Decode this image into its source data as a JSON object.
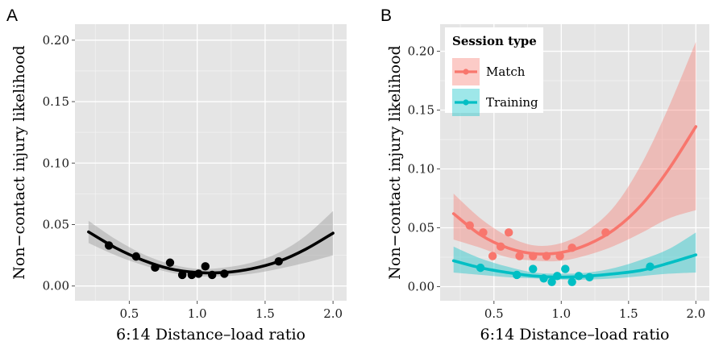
{
  "chart_data": [
    {
      "panel": "A",
      "type": "scatter",
      "xlabel": "6:14 Distance–load ratio",
      "ylabel": "Non−contact injury likelihood",
      "xlim": [
        0.1,
        2.1
      ],
      "ylim": [
        -0.012,
        0.213
      ],
      "xticks": [
        0.5,
        1.0,
        1.5,
        2.0
      ],
      "xtick_labels": [
        "0.5",
        "1.0",
        "1.5",
        "2.0"
      ],
      "yticks": [
        0.0,
        0.05,
        0.1,
        0.15,
        0.2
      ],
      "ytick_labels": [
        "0.00",
        "0.05",
        "0.10",
        "0.15",
        "0.20"
      ],
      "grid": true,
      "series": [
        {
          "color": "#000000",
          "band_color": "#aaaaaa",
          "points": [
            {
              "x": 0.35,
              "y": 0.033
            },
            {
              "x": 0.55,
              "y": 0.024
            },
            {
              "x": 0.69,
              "y": 0.015
            },
            {
              "x": 0.8,
              "y": 0.019
            },
            {
              "x": 0.89,
              "y": 0.009
            },
            {
              "x": 0.96,
              "y": 0.009
            },
            {
              "x": 1.01,
              "y": 0.01
            },
            {
              "x": 1.06,
              "y": 0.016
            },
            {
              "x": 1.11,
              "y": 0.009
            },
            {
              "x": 1.2,
              "y": 0.01
            },
            {
              "x": 1.6,
              "y": 0.02
            }
          ],
          "fit": {
            "x": [
              0.2,
              0.4,
              0.6,
              0.8,
              1.0,
              1.2,
              1.4,
              1.6,
              1.8,
              2.0
            ],
            "y": [
              0.044,
              0.031,
              0.021,
              0.014,
              0.011,
              0.011,
              0.014,
              0.02,
              0.03,
              0.043
            ],
            "lower": [
              0.035,
              0.025,
              0.017,
              0.011,
              0.008,
              0.008,
              0.01,
              0.014,
              0.019,
              0.025
            ],
            "upper": [
              0.053,
              0.038,
              0.026,
              0.018,
              0.014,
              0.015,
              0.019,
              0.027,
              0.041,
              0.061
            ]
          }
        }
      ]
    },
    {
      "panel": "B",
      "type": "scatter",
      "xlabel": "6:14 Distance–load ratio",
      "ylabel": "Non−contact injury likelihood",
      "xlim": [
        0.1,
        2.1
      ],
      "ylim": [
        -0.012,
        0.223
      ],
      "xticks": [
        0.5,
        1.0,
        1.5,
        2.0
      ],
      "xtick_labels": [
        "0.5",
        "1.0",
        "1.5",
        "2.0"
      ],
      "yticks": [
        0.0,
        0.05,
        0.1,
        0.15,
        0.2
      ],
      "ytick_labels": [
        "0.00",
        "0.05",
        "0.10",
        "0.15",
        "0.20"
      ],
      "grid": true,
      "legend": {
        "title": "Session type",
        "position": "top-left"
      },
      "series": [
        {
          "name": "Match",
          "color": "#f8766d",
          "band_color": "#f8766d",
          "points": [
            {
              "x": 0.32,
              "y": 0.052
            },
            {
              "x": 0.42,
              "y": 0.046
            },
            {
              "x": 0.49,
              "y": 0.026
            },
            {
              "x": 0.55,
              "y": 0.034
            },
            {
              "x": 0.61,
              "y": 0.046
            },
            {
              "x": 0.69,
              "y": 0.026
            },
            {
              "x": 0.79,
              "y": 0.026
            },
            {
              "x": 0.89,
              "y": 0.026
            },
            {
              "x": 0.99,
              "y": 0.026
            },
            {
              "x": 1.08,
              "y": 0.033
            },
            {
              "x": 1.33,
              "y": 0.046
            }
          ],
          "fit": {
            "x": [
              0.2,
              0.4,
              0.6,
              0.8,
              1.0,
              1.2,
              1.4,
              1.6,
              1.8,
              2.0
            ],
            "y": [
              0.062,
              0.044,
              0.033,
              0.028,
              0.029,
              0.036,
              0.049,
              0.07,
              0.1,
              0.136
            ],
            "lower": [
              0.04,
              0.033,
              0.025,
              0.022,
              0.022,
              0.027,
              0.035,
              0.046,
              0.058,
              0.065
            ],
            "upper": [
              0.079,
              0.058,
              0.043,
              0.035,
              0.037,
              0.048,
              0.069,
              0.105,
              0.153,
              0.208
            ]
          }
        },
        {
          "name": "Training",
          "color": "#00bfc4",
          "band_color": "#00bfc4",
          "points": [
            {
              "x": 0.4,
              "y": 0.016
            },
            {
              "x": 0.67,
              "y": 0.01
            },
            {
              "x": 0.79,
              "y": 0.015
            },
            {
              "x": 0.87,
              "y": 0.007
            },
            {
              "x": 0.93,
              "y": 0.004
            },
            {
              "x": 0.97,
              "y": 0.009
            },
            {
              "x": 1.03,
              "y": 0.015
            },
            {
              "x": 1.08,
              "y": 0.004
            },
            {
              "x": 1.13,
              "y": 0.009
            },
            {
              "x": 1.21,
              "y": 0.008
            },
            {
              "x": 1.66,
              "y": 0.017
            }
          ],
          "fit": {
            "x": [
              0.2,
              0.4,
              0.6,
              0.8,
              1.0,
              1.2,
              1.4,
              1.6,
              1.8,
              2.0
            ],
            "y": [
              0.022,
              0.016,
              0.012,
              0.009,
              0.008,
              0.009,
              0.011,
              0.014,
              0.02,
              0.027
            ],
            "lower": [
              0.012,
              0.01,
              0.008,
              0.007,
              0.006,
              0.006,
              0.007,
              0.009,
              0.011,
              0.012
            ],
            "upper": [
              0.034,
              0.024,
              0.017,
              0.012,
              0.011,
              0.012,
              0.016,
              0.023,
              0.032,
              0.046
            ]
          }
        }
      ]
    }
  ]
}
